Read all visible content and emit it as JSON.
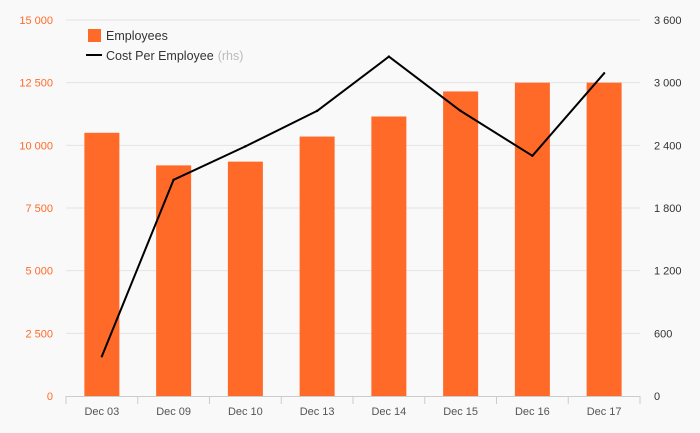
{
  "chart_data": {
    "type": "bar",
    "categories": [
      "Dec 03",
      "Dec 09",
      "Dec 10",
      "Dec 13",
      "Dec 14",
      "Dec 15",
      "Dec 16",
      "Dec 17"
    ],
    "series": [
      {
        "name": "Employees",
        "kind": "bar",
        "axis": "left",
        "color": "#ff6a28",
        "values": [
          10500,
          9200,
          9350,
          10350,
          11150,
          12150,
          12500,
          12500
        ]
      },
      {
        "name": "Cost Per Employee",
        "name_suffix": "(rhs)",
        "kind": "line",
        "axis": "right",
        "color": "#000000",
        "values": [
          380,
          2070,
          2390,
          2730,
          3250,
          2730,
          2300,
          3090
        ]
      }
    ],
    "y_left": {
      "ylim": [
        0,
        15000
      ],
      "ticks": [
        0,
        2500,
        5000,
        7500,
        10000,
        12500,
        15000
      ],
      "tick_labels": [
        "0",
        "2 500",
        "5 000",
        "7 500",
        "10 000",
        "12 500",
        "15 000"
      ],
      "color": "#ff6a28"
    },
    "y_right": {
      "ylim": [
        0,
        3600
      ],
      "ticks": [
        0,
        600,
        1200,
        1800,
        2400,
        3000,
        3600
      ],
      "tick_labels": [
        "0",
        "600",
        "1 200",
        "1 800",
        "2 400",
        "3 000",
        "3 600"
      ],
      "color": "#333333"
    },
    "grid": true,
    "legend_position": "top-left"
  }
}
